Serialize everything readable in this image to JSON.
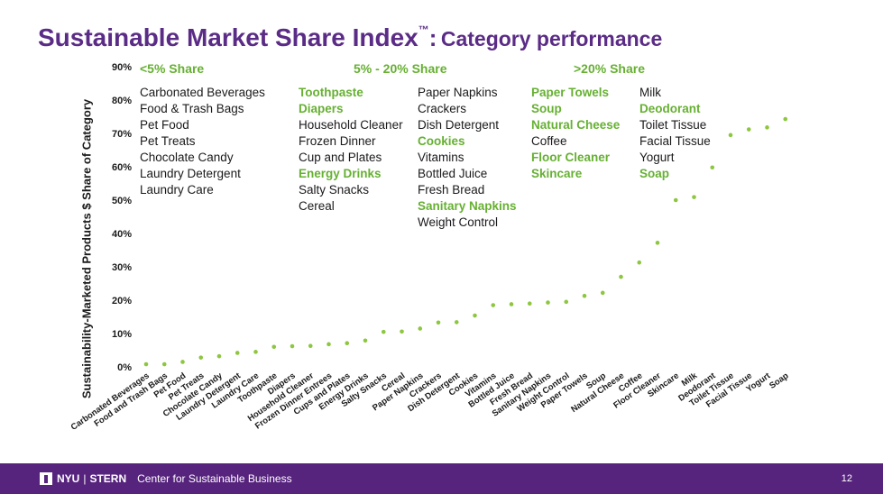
{
  "title": {
    "main": "Sustainable Market Share Index",
    "tm": "™",
    "colon": ":",
    "sub": "Category performance"
  },
  "groups": [
    {
      "heading": "<5% Share",
      "columns": [
        [
          {
            "t": "Carbonated Beverages",
            "h": false
          },
          {
            "t": "Food & Trash Bags",
            "h": false
          },
          {
            "t": "Pet Food",
            "h": false
          },
          {
            "t": "Pet Treats",
            "h": false
          },
          {
            "t": "Chocolate Candy",
            "h": false
          },
          {
            "t": "Laundry Detergent",
            "h": false
          },
          {
            "t": "Laundry Care",
            "h": false
          }
        ]
      ]
    },
    {
      "heading": "5% - 20% Share",
      "columns": [
        [
          {
            "t": "Toothpaste",
            "h": true
          },
          {
            "t": "Diapers",
            "h": true
          },
          {
            "t": "Household Cleaner",
            "h": false
          },
          {
            "t": "Frozen Dinner",
            "h": false
          },
          {
            "t": "Cup and Plates",
            "h": false
          },
          {
            "t": "Energy Drinks",
            "h": true
          },
          {
            "t": "Salty Snacks",
            "h": false
          },
          {
            "t": "Cereal",
            "h": false
          }
        ],
        [
          {
            "t": "Paper Napkins",
            "h": false
          },
          {
            "t": "Crackers",
            "h": false
          },
          {
            "t": "Dish Detergent",
            "h": false
          },
          {
            "t": "Cookies",
            "h": true
          },
          {
            "t": "Vitamins",
            "h": false
          },
          {
            "t": "Bottled Juice",
            "h": false
          },
          {
            "t": "Fresh Bread",
            "h": false
          },
          {
            "t": "Sanitary Napkins",
            "h": true
          },
          {
            "t": "Weight Control",
            "h": false
          }
        ]
      ]
    },
    {
      "heading": ">20% Share",
      "columns": [
        [
          {
            "t": "Paper Towels",
            "h": true
          },
          {
            "t": "Soup",
            "h": true
          },
          {
            "t": "Natural Cheese",
            "h": true
          },
          {
            "t": "Coffee",
            "h": false
          },
          {
            "t": "Floor Cleaner",
            "h": true
          },
          {
            "t": "Skincare",
            "h": true
          }
        ],
        [
          {
            "t": "Milk",
            "h": false
          },
          {
            "t": "Deodorant",
            "h": true
          },
          {
            "t": "Toilet Tissue",
            "h": false
          },
          {
            "t": "Facial Tissue",
            "h": false
          },
          {
            "t": "Yogurt",
            "h": false
          },
          {
            "t": "Soap",
            "h": true
          }
        ]
      ]
    }
  ],
  "chart_data": {
    "type": "scatter",
    "ylabel": "Sustainability-Marketed Products $ Share of Category",
    "ylim": [
      0,
      90
    ],
    "yticks": [
      "0%",
      "10%",
      "20%",
      "30%",
      "40%",
      "50%",
      "60%",
      "70%",
      "80%",
      "90%"
    ],
    "grid": false,
    "marker_color": "#8dc63f",
    "categories": [
      "Carbonated Beverages",
      "Food and Trash Bags",
      "Pet Food",
      "Pet Treats",
      "Chocolate Candy",
      "Laundry Detergent",
      "Laundry Care",
      "Toothpaste",
      "Diapers",
      "Household Cleaner",
      "Frozen Dinner Entrees",
      "Cups and Plates",
      "Energy Drinks",
      "Salty Snacks",
      "Cereal",
      "Paper Napkins",
      "Crackers",
      "Dish Detergent",
      "Cookies",
      "Vitamins",
      "Bottled Juice",
      "Fresh Bread",
      "Sanitary Napkins",
      "Weight Control",
      "Paper Towels",
      "Soup",
      "Natural Cheese",
      "Coffee",
      "Floor Cleaner",
      "Skincare",
      "Milk",
      "Deodorant",
      "Toilet Tissue",
      "Facial Tissue",
      "Yogurt",
      "Soap"
    ],
    "values": [
      0.8,
      0.8,
      1.5,
      2.8,
      3.2,
      4.2,
      4.5,
      6.0,
      6.2,
      6.3,
      6.8,
      7.1,
      7.9,
      10.5,
      10.6,
      11.5,
      13.3,
      13.4,
      15.4,
      18.5,
      18.8,
      19.0,
      19.3,
      19.5,
      21.3,
      22.2,
      27.0,
      31.3,
      37.2,
      50.0,
      50.9,
      59.8,
      69.5,
      71.2,
      71.8,
      74.3
    ]
  },
  "footer": {
    "nyu": "NYU",
    "bar": "|",
    "stern": "STERN",
    "center": "Center for Sustainable Business",
    "page": "12"
  }
}
